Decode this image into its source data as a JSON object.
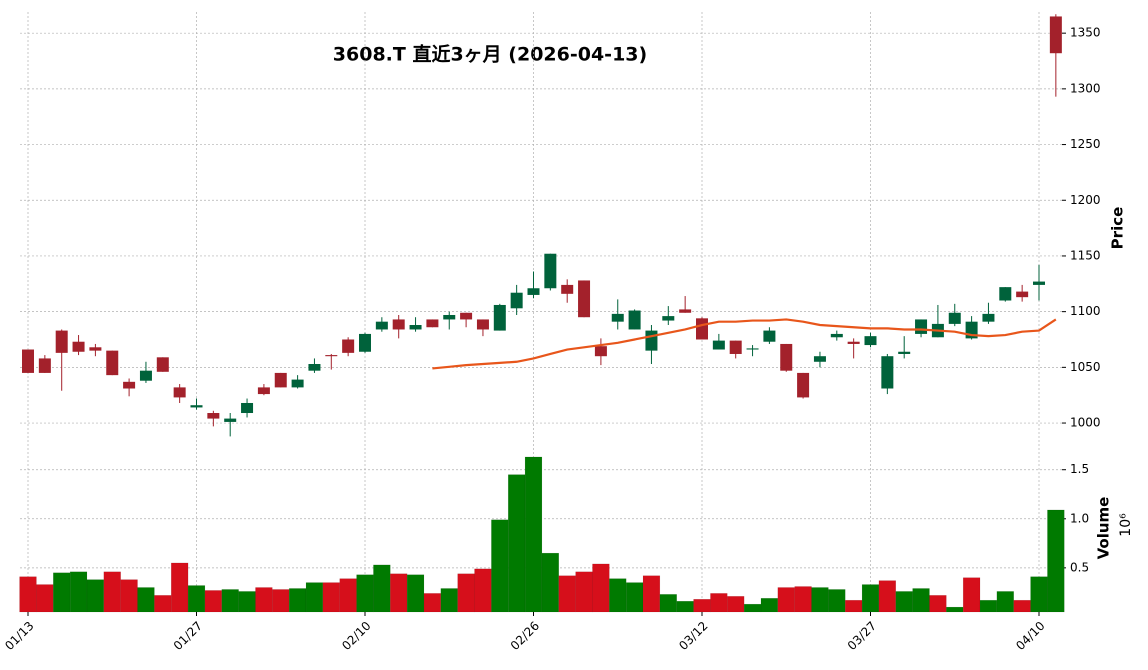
{
  "chart_data": {
    "type": "candlestick",
    "title": "3608.T  直近3ヶ月  (2026-04-13)",
    "categories": [
      "01/13",
      null,
      null,
      null,
      null,
      null,
      null,
      null,
      null,
      null,
      "01/27",
      null,
      null,
      null,
      null,
      null,
      null,
      null,
      null,
      null,
      "02/10",
      null,
      null,
      null,
      null,
      null,
      null,
      null,
      null,
      null,
      "02/26",
      null,
      null,
      null,
      null,
      null,
      null,
      null,
      null,
      null,
      "03/12",
      null,
      null,
      null,
      null,
      null,
      null,
      null,
      null,
      null,
      "03/27",
      null,
      null,
      null,
      null,
      null,
      null,
      null,
      null,
      null,
      "04/10",
      null
    ],
    "open": [
      1066,
      1058,
      1083,
      1073,
      1068,
      1065,
      1037,
      1038,
      1059,
      1032,
      1014,
      1009,
      1001,
      1009,
      1032,
      1045,
      1032,
      1047,
      1061,
      1075,
      1064,
      1084,
      1093,
      1084,
      1093,
      1093,
      1099,
      1093,
      1083,
      1103,
      1115,
      1121,
      1124,
      1128,
      1069,
      1091,
      1084,
      1065,
      1092,
      1102,
      1094,
      1066,
      1074,
      1066,
      1073,
      1071,
      1045,
      1055,
      1077,
      1073,
      1070,
      1031,
      1062,
      1080,
      1077,
      1089,
      1076,
      1091,
      1110,
      1118,
      1124,
      1365
    ],
    "high": [
      1066,
      1061,
      1084,
      1079,
      1071,
      1065,
      1040,
      1055,
      1059,
      1035,
      1022,
      1011,
      1009,
      1022,
      1035,
      1045,
      1043,
      1058,
      1062,
      1077,
      1081,
      1095,
      1097,
      1095,
      1093,
      1100,
      1099,
      1093,
      1107,
      1124,
      1136,
      1152,
      1129,
      1128,
      1076,
      1111,
      1102,
      1088,
      1105,
      1114,
      1095,
      1080,
      1074,
      1070,
      1086,
      1071,
      1045,
      1064,
      1083,
      1076,
      1081,
      1062,
      1078,
      1093,
      1106,
      1107,
      1096,
      1108,
      1122,
      1124,
      1142,
      1367
    ],
    "low": [
      1045,
      1045,
      1029,
      1061,
      1060,
      1043,
      1024,
      1036,
      1046,
      1018,
      1012,
      997,
      988,
      1005,
      1025,
      1032,
      1031,
      1045,
      1048,
      1060,
      1063,
      1082,
      1076,
      1082,
      1086,
      1084,
      1086,
      1078,
      1083,
      1097,
      1112,
      1119,
      1108,
      1095,
      1052,
      1084,
      1084,
      1053,
      1088,
      1099,
      1075,
      1066,
      1058,
      1060,
      1071,
      1046,
      1022,
      1050,
      1074,
      1058,
      1068,
      1026,
      1058,
      1077,
      1077,
      1087,
      1075,
      1089,
      1109,
      1109,
      1110,
      1293
    ],
    "close": [
      1045,
      1045,
      1063,
      1064,
      1065,
      1043,
      1031,
      1047,
      1046,
      1023,
      1016,
      1004,
      1004,
      1018,
      1026,
      1032,
      1039,
      1053,
      1060,
      1063,
      1080,
      1091,
      1084,
      1088,
      1086,
      1097,
      1093,
      1084,
      1106,
      1117,
      1121,
      1152,
      1116,
      1095,
      1060,
      1098,
      1101,
      1083,
      1096,
      1099,
      1075,
      1074,
      1062,
      1067,
      1083,
      1047,
      1023,
      1060,
      1080,
      1071,
      1078,
      1060,
      1064,
      1093,
      1089,
      1099,
      1091,
      1098,
      1122,
      1113,
      1127,
      1332
    ],
    "up_color": "#00623b",
    "down_color": "#a3212b",
    "ma": {
      "color": "#e8561b",
      "values": [
        null,
        null,
        null,
        null,
        null,
        null,
        null,
        null,
        null,
        null,
        null,
        null,
        null,
        null,
        null,
        null,
        null,
        null,
        null,
        null,
        null,
        null,
        null,
        null,
        1049,
        1050.5,
        1052,
        1053,
        1054,
        1055,
        1058,
        1062,
        1066,
        1068,
        1070,
        1072,
        1075,
        1078,
        1081,
        1084,
        1088,
        1091,
        1091,
        1092,
        1092,
        1093,
        1091,
        1088,
        1087,
        1086,
        1085,
        1085,
        1084,
        1084,
        1083,
        1082,
        1079,
        1078,
        1079,
        1082,
        1083,
        1093
      ]
    },
    "ylabel": "Price",
    "ylim": [
      974,
      1369
    ],
    "yticks": [
      1000,
      1050,
      1100,
      1150,
      1200,
      1250,
      1300,
      1350
    ],
    "volume": {
      "ylabel": "Volume",
      "offset": "10⁶",
      "ylim": [
        0.05,
        1.65
      ],
      "yticks": [
        {
          "value": 0.5,
          "label": "0.5"
        },
        {
          "value": 1.0,
          "label": "1.0"
        },
        {
          "value": 1.5,
          "label": "1.5"
        }
      ],
      "values": [
        0.41,
        0.33,
        0.45,
        0.46,
        0.38,
        0.46,
        0.38,
        0.3,
        0.22,
        0.55,
        0.32,
        0.27,
        0.28,
        0.26,
        0.3,
        0.28,
        0.29,
        0.35,
        0.35,
        0.39,
        0.43,
        0.53,
        0.44,
        0.43,
        0.24,
        0.29,
        0.44,
        0.49,
        0.99,
        1.45,
        1.63,
        0.65,
        0.42,
        0.46,
        0.54,
        0.39,
        0.35,
        0.42,
        0.23,
        0.16,
        0.18,
        0.24,
        0.21,
        0.13,
        0.19,
        0.3,
        0.31,
        0.3,
        0.28,
        0.17,
        0.33,
        0.37,
        0.26,
        0.29,
        0.22,
        0.1,
        0.4,
        0.17,
        0.26,
        0.17,
        0.41,
        1.09
      ],
      "colors": [
        "#d60f1b",
        "#d60f1b",
        "#007a00",
        "#007a00",
        "#007a00",
        "#d60f1b",
        "#d60f1b",
        "#007a00",
        "#d60f1b",
        "#d60f1b",
        "#007a00",
        "#d60f1b",
        "#007a00",
        "#007a00",
        "#d60f1b",
        "#d60f1b",
        "#007a00",
        "#007a00",
        "#d60f1b",
        "#d60f1b",
        "#007a00",
        "#007a00",
        "#d60f1b",
        "#007a00",
        "#d60f1b",
        "#007a00",
        "#d60f1b",
        "#d60f1b",
        "#007a00",
        "#007a00",
        "#007a00",
        "#007a00",
        "#d60f1b",
        "#d60f1b",
        "#d60f1b",
        "#007a00",
        "#007a00",
        "#d60f1b",
        "#007a00",
        "#007a00",
        "#d60f1b",
        "#d60f1b",
        "#d60f1b",
        "#007a00",
        "#007a00",
        "#d60f1b",
        "#d60f1b",
        "#007a00",
        "#007a00",
        "#d60f1b",
        "#007a00",
        "#d60f1b",
        "#007a00",
        "#007a00",
        "#d60f1b",
        "#007a00",
        "#d60f1b",
        "#007a00",
        "#007a00",
        "#d60f1b",
        "#007a00",
        "#007a00"
      ]
    },
    "grid": true
  }
}
